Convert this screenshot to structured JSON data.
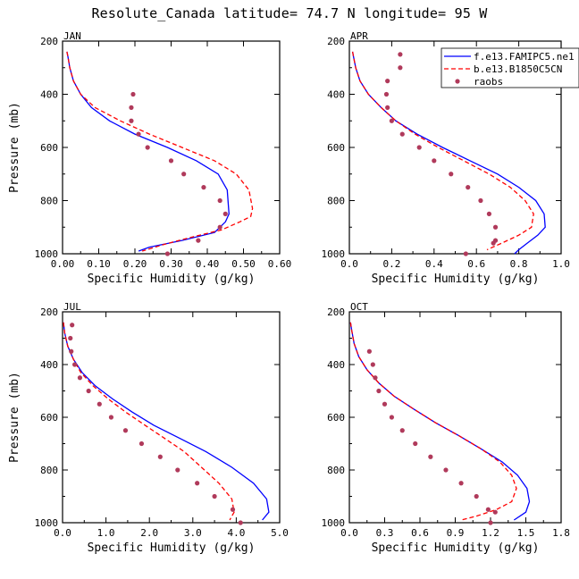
{
  "title": "Resolute_Canada  latitude= 74.7 N longitude= 95 W",
  "chart_data": [
    {
      "type": "line",
      "panel_label": "JAN",
      "xlabel": "Specific Humidity (g/kg)",
      "ylabel": "Pressure (mb)",
      "xlim": [
        0.0,
        0.6
      ],
      "ylim": [
        1000,
        200
      ],
      "xticks": [
        "0.00",
        "0.10",
        "0.20",
        "0.30",
        "0.40",
        "0.50",
        "0.60"
      ],
      "yticks": [
        "200",
        "400",
        "600",
        "800",
        "1000"
      ],
      "series": [
        {
          "name": "f.e13.FAMIPC5.ne",
          "color": "#0000ff",
          "style": "solid",
          "x": [
            0.012,
            0.015,
            0.02,
            0.03,
            0.05,
            0.08,
            0.13,
            0.2,
            0.29,
            0.37,
            0.43,
            0.455,
            0.46,
            0.45,
            0.42,
            0.33,
            0.24,
            0.21
          ],
          "y": [
            240,
            260,
            300,
            350,
            400,
            450,
            500,
            550,
            600,
            650,
            700,
            760,
            850,
            880,
            920,
            950,
            975,
            990
          ]
        },
        {
          "name": "b.e13.B1850C5CN",
          "color": "#ff0000",
          "style": "dashed",
          "x": [
            0.012,
            0.015,
            0.02,
            0.03,
            0.05,
            0.09,
            0.16,
            0.24,
            0.33,
            0.42,
            0.48,
            0.515,
            0.525,
            0.52,
            0.49,
            0.44,
            0.35,
            0.28,
            0.22
          ],
          "y": [
            240,
            260,
            300,
            350,
            400,
            450,
            500,
            550,
            600,
            650,
            700,
            760,
            830,
            860,
            880,
            910,
            940,
            965,
            990
          ]
        },
        {
          "name": "raobs",
          "color": "#b03a5b",
          "style": "dots",
          "x": [
            0.195,
            0.19,
            0.19,
            0.21,
            0.235,
            0.3,
            0.335,
            0.39,
            0.435,
            0.45,
            0.435,
            0.375,
            0.29
          ],
          "y": [
            400,
            450,
            500,
            550,
            600,
            650,
            700,
            750,
            800,
            850,
            900,
            950,
            1000
          ]
        }
      ]
    },
    {
      "type": "line",
      "panel_label": "APR",
      "xlabel": "Specific Humidity (g/kg)",
      "ylabel": "",
      "xlim": [
        0.0,
        1.0
      ],
      "ylim": [
        1000,
        200
      ],
      "xticks": [
        "0.0",
        "0.2",
        "0.4",
        "0.6",
        "0.8",
        "1.0"
      ],
      "yticks": [
        "200",
        "400",
        "600",
        "800",
        "1000"
      ],
      "series": [
        {
          "name": "f.e13.FAMIPC5.ne",
          "color": "#0000ff",
          "style": "solid",
          "x": [
            0.015,
            0.02,
            0.03,
            0.05,
            0.09,
            0.15,
            0.22,
            0.32,
            0.44,
            0.57,
            0.7,
            0.8,
            0.88,
            0.92,
            0.925,
            0.89,
            0.84,
            0.8,
            0.78
          ],
          "y": [
            240,
            260,
            300,
            350,
            400,
            450,
            500,
            550,
            600,
            650,
            700,
            750,
            800,
            850,
            900,
            930,
            960,
            985,
            1000
          ]
        },
        {
          "name": "b.e13.B1850C5CN",
          "color": "#ff0000",
          "style": "dashed",
          "x": [
            0.015,
            0.02,
            0.03,
            0.05,
            0.09,
            0.15,
            0.22,
            0.31,
            0.42,
            0.54,
            0.66,
            0.76,
            0.83,
            0.87,
            0.86,
            0.8,
            0.72,
            0.65
          ],
          "y": [
            240,
            260,
            300,
            350,
            400,
            450,
            500,
            550,
            600,
            650,
            700,
            750,
            800,
            850,
            900,
            930,
            960,
            985
          ]
        },
        {
          "name": "raobs",
          "color": "#b03a5b",
          "style": "dots",
          "x": [
            0.24,
            0.24,
            0.18,
            0.175,
            0.18,
            0.2,
            0.25,
            0.33,
            0.4,
            0.48,
            0.56,
            0.62,
            0.66,
            0.69,
            0.69,
            0.68,
            0.55
          ],
          "y": [
            250,
            300,
            350,
            400,
            450,
            500,
            550,
            600,
            650,
            700,
            750,
            800,
            850,
            900,
            950,
            960,
            1000
          ]
        }
      ]
    },
    {
      "type": "line",
      "panel_label": "JUL",
      "xlabel": "Specific Humidity (g/kg)",
      "ylabel": "Pressure (mb)",
      "xlim": [
        0.0,
        5.0
      ],
      "ylim": [
        1000,
        200
      ],
      "xticks": [
        "0.0",
        "1.0",
        "2.0",
        "3.0",
        "4.0",
        "5.0"
      ],
      "yticks": [
        "200",
        "400",
        "600",
        "800",
        "1000"
      ],
      "series": [
        {
          "name": "f.e13.FAMIPC5.ne",
          "color": "#0000ff",
          "style": "solid",
          "x": [
            0.02,
            0.05,
            0.12,
            0.25,
            0.45,
            0.75,
            1.15,
            1.6,
            2.1,
            2.7,
            3.3,
            3.9,
            4.4,
            4.7,
            4.75,
            4.6
          ],
          "y": [
            240,
            280,
            330,
            380,
            430,
            480,
            530,
            580,
            630,
            680,
            730,
            790,
            850,
            910,
            960,
            990
          ]
        },
        {
          "name": "b.e13.B1850C5CN",
          "color": "#ff0000",
          "style": "dashed",
          "x": [
            0.02,
            0.05,
            0.12,
            0.25,
            0.42,
            0.7,
            1.05,
            1.45,
            1.9,
            2.35,
            2.8,
            3.2,
            3.6,
            3.9,
            3.95,
            3.85
          ],
          "y": [
            240,
            280,
            330,
            380,
            430,
            480,
            530,
            580,
            630,
            680,
            730,
            790,
            850,
            910,
            960,
            990
          ]
        },
        {
          "name": "raobs",
          "color": "#b03a5b",
          "style": "dots",
          "x": [
            0.22,
            0.18,
            0.2,
            0.28,
            0.4,
            0.6,
            0.85,
            1.12,
            1.45,
            1.82,
            2.25,
            2.65,
            3.1,
            3.5,
            3.92,
            4.1
          ],
          "y": [
            250,
            300,
            350,
            400,
            450,
            500,
            550,
            600,
            650,
            700,
            750,
            800,
            850,
            900,
            950,
            1000
          ]
        }
      ]
    },
    {
      "type": "line",
      "panel_label": "OCT",
      "xlabel": "Specific Humidity (g/kg)",
      "ylabel": "",
      "xlim": [
        0.0,
        1.8
      ],
      "ylim": [
        1000,
        200
      ],
      "xticks": [
        "0.0",
        "0.3",
        "0.6",
        "0.9",
        "1.2",
        "1.5",
        "1.8"
      ],
      "yticks": [
        "200",
        "400",
        "600",
        "800",
        "1000"
      ],
      "series": [
        {
          "name": "f.e13.FAMIPC5.ne",
          "color": "#0000ff",
          "style": "solid",
          "x": [
            0.01,
            0.02,
            0.04,
            0.08,
            0.15,
            0.25,
            0.38,
            0.55,
            0.73,
            0.93,
            1.12,
            1.3,
            1.43,
            1.51,
            1.53,
            1.5,
            1.4
          ],
          "y": [
            240,
            270,
            320,
            370,
            420,
            470,
            520,
            570,
            620,
            670,
            720,
            770,
            820,
            870,
            920,
            960,
            990
          ]
        },
        {
          "name": "b.e13.B1850C5CN",
          "color": "#ff0000",
          "style": "dashed",
          "x": [
            0.01,
            0.02,
            0.04,
            0.08,
            0.15,
            0.25,
            0.38,
            0.55,
            0.73,
            0.93,
            1.12,
            1.28,
            1.38,
            1.42,
            1.38,
            1.25,
            1.08,
            0.95
          ],
          "y": [
            240,
            270,
            320,
            370,
            420,
            470,
            520,
            570,
            620,
            670,
            720,
            770,
            820,
            870,
            920,
            950,
            975,
            990
          ]
        },
        {
          "name": "raobs",
          "color": "#b03a5b",
          "style": "dots",
          "x": [
            0.17,
            0.2,
            0.22,
            0.25,
            0.3,
            0.36,
            0.45,
            0.56,
            0.69,
            0.82,
            0.95,
            1.08,
            1.18,
            1.24,
            1.2
          ],
          "y": [
            350,
            400,
            450,
            500,
            550,
            600,
            650,
            700,
            750,
            800,
            850,
            900,
            950,
            960,
            1000
          ]
        }
      ]
    }
  ],
  "legend": {
    "placement": "top-right of APR panel",
    "entries": [
      {
        "label": "f.e13.FAMIPC5.ne1",
        "color": "#0000ff",
        "style": "solid"
      },
      {
        "label": "b.e13.B1850C5CN",
        "color": "#ff0000",
        "style": "dashed"
      },
      {
        "label": "raobs",
        "color": "#b03a5b",
        "style": "dots"
      }
    ]
  }
}
